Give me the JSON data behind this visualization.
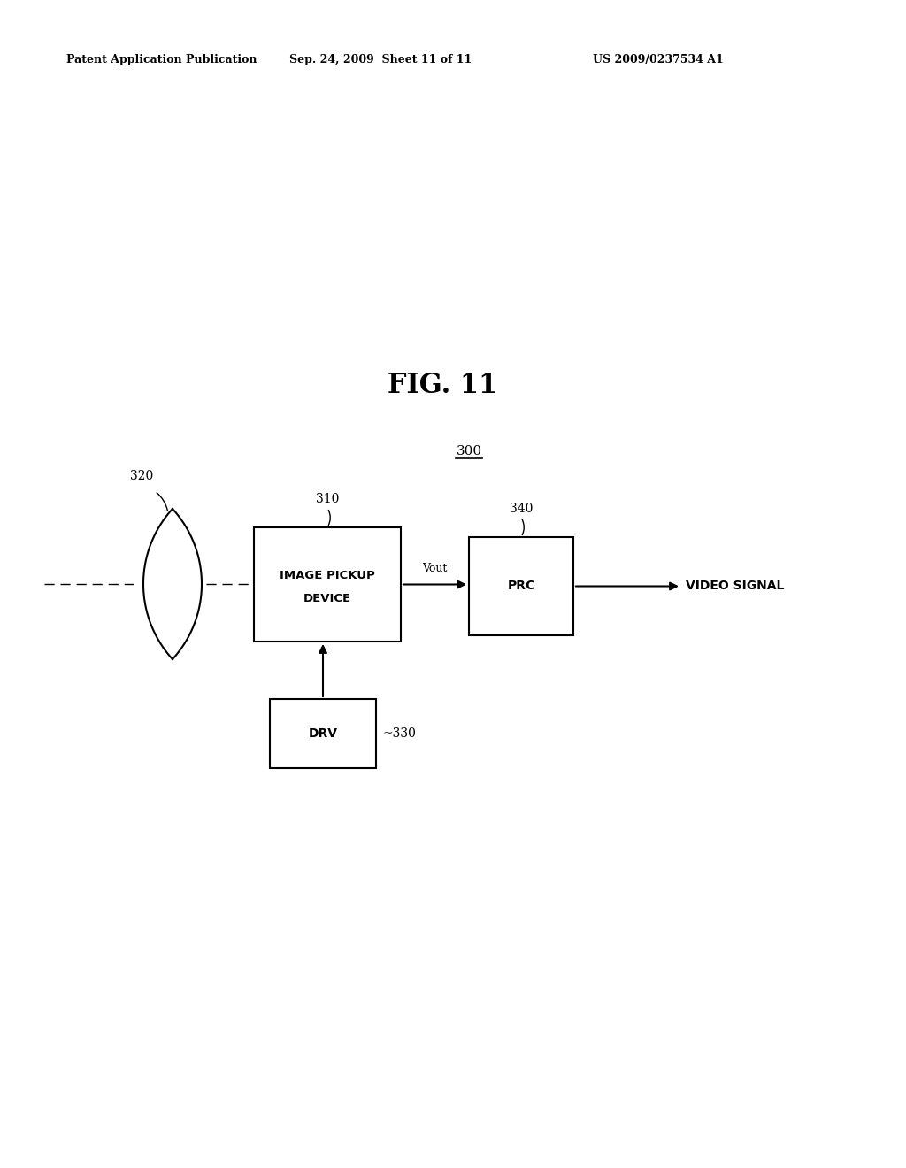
{
  "fig_title": "FIG. 11",
  "patent_header_left": "Patent Application Publication",
  "patent_header_mid": "Sep. 24, 2009  Sheet 11 of 11",
  "patent_header_right": "US 2009/0237534 A1",
  "system_label": "300",
  "lens_label": "320",
  "ipd_label": "310",
  "ipd_text1": "IMAGE PICKUP",
  "ipd_text2": "DEVICE",
  "prc_label": "340",
  "prc_text": "PRC",
  "drv_label": "330",
  "drv_text": "DRV",
  "vout_label": "Vout",
  "video_signal_label": "VIDEO SIGNAL",
  "bg_color": "#ffffff",
  "text_color": "#000000",
  "box_edge_color": "#000000",
  "line_color": "#000000"
}
